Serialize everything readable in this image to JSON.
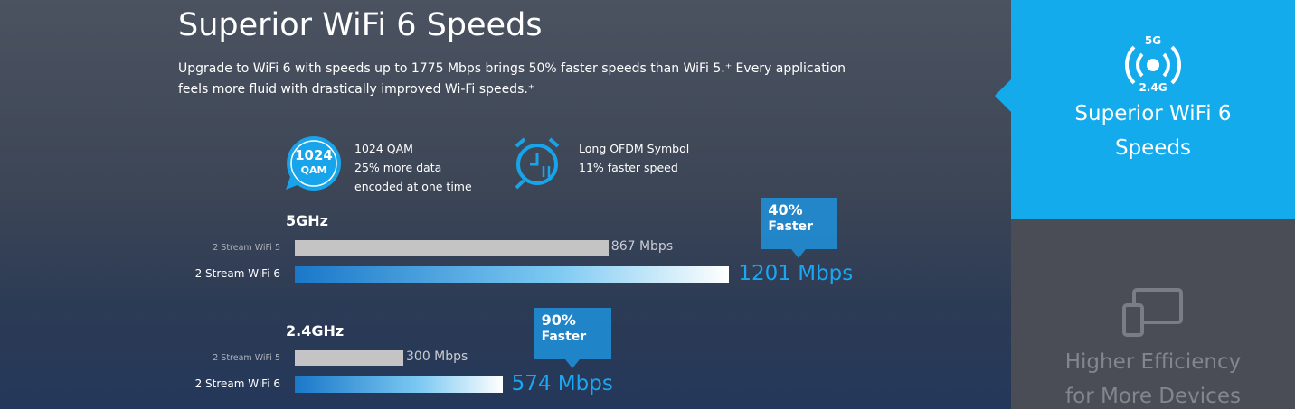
{
  "hero": {
    "title": "Superior WiFi 6 Speeds",
    "description": [
      "Upgrade to WiFi 6 with speeds up to 1775 Mbps brings 50% faster speeds than WiFi 5.⁺ Every application",
      "feels more fluid with drastically improved Wi-Fi speeds.⁺"
    ]
  },
  "features": [
    {
      "icon_text": [
        "1024",
        "QAM"
      ],
      "lines": [
        "1024 QAM",
        "25% more data",
        "encoded at one time"
      ]
    },
    {
      "lines": [
        "Long OFDM Symbol",
        "11% faster speed"
      ]
    }
  ],
  "speed_groups": [
    {
      "band": "5GHz",
      "badge": {
        "percent": "40%",
        "text": "Faster"
      },
      "rows": [
        {
          "label": "2 Stream WiFi 5",
          "value": 867,
          "value_label": "867 Mbps"
        },
        {
          "label": "2 Stream WiFi 6",
          "value": 1201,
          "value_label": "1201 Mbps"
        }
      ]
    },
    {
      "band": "2.4GHz",
      "badge": {
        "percent": "90%",
        "text": "Faster"
      },
      "rows": [
        {
          "label": "2 Stream WiFi 5",
          "value": 300,
          "value_label": "300 Mbps"
        },
        {
          "label": "2 Stream WiFi 6",
          "value": 574,
          "value_label": "574 Mbps"
        }
      ]
    }
  ],
  "sidebar": {
    "items": [
      {
        "icon_text": [
          "5G",
          "2.4G"
        ],
        "title": "Superior WiFi 6 Speeds"
      },
      {
        "title": "Higher Efficiency for More Devices"
      }
    ]
  }
}
